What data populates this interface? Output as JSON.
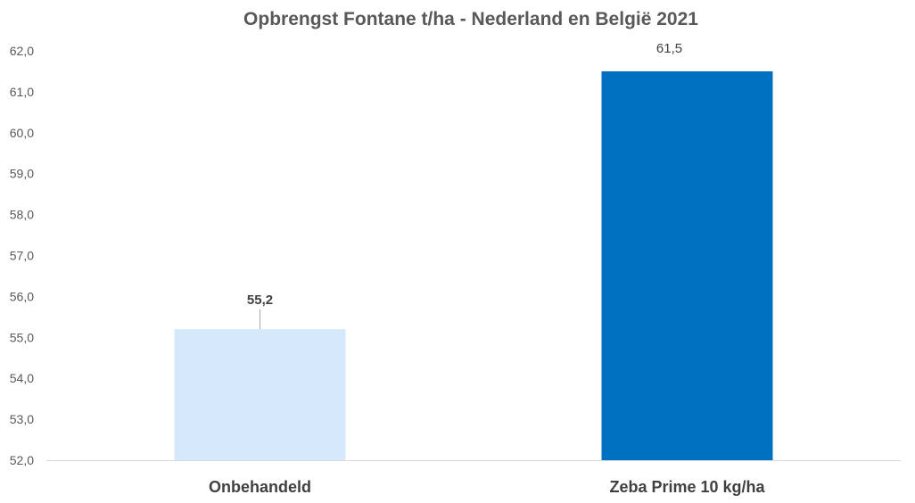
{
  "chart_data": {
    "type": "bar",
    "title": "Opbrengst Fontane t/ha - Nederland en België 2021",
    "categories": [
      "Onbehandeld",
      "Zeba Prime 10 kg/ha"
    ],
    "values": [
      55.2,
      61.5
    ],
    "value_labels": [
      "55,2",
      "61,5"
    ],
    "colors": [
      "#d6e9fc",
      "#0070c0"
    ],
    "ylim": [
      52,
      62
    ],
    "yticks": [
      52,
      53,
      54,
      55,
      56,
      57,
      58,
      59,
      60,
      61,
      62
    ],
    "ytick_labels": [
      "52,0",
      "53,0",
      "54,0",
      "55,0",
      "56,0",
      "57,0",
      "58,0",
      "59,0",
      "60,0",
      "61,0",
      "62,0"
    ],
    "grid": false,
    "legend": "none"
  }
}
